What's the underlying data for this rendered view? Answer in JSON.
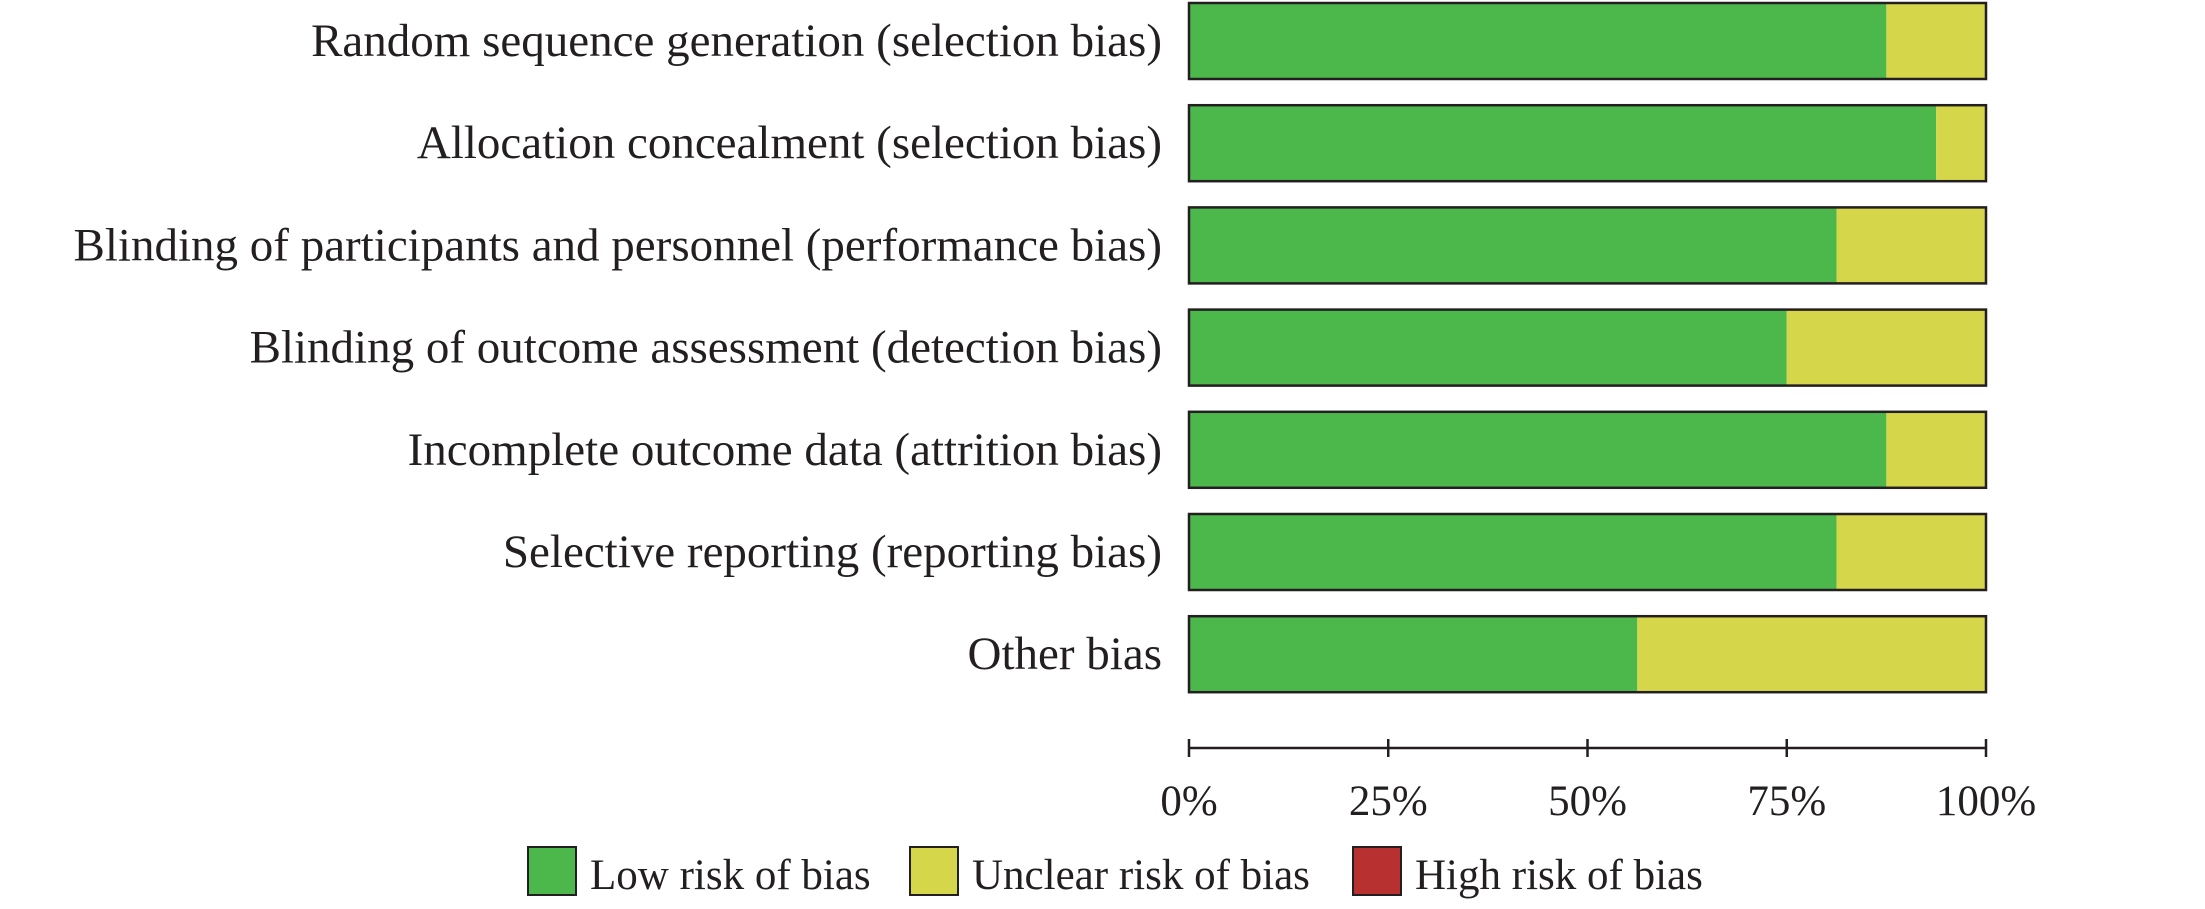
{
  "chart_data": {
    "type": "bar",
    "orientation": "horizontal",
    "stacked": true,
    "categories": [
      "Random sequence generation (selection bias)",
      "Allocation concealment (selection bias)",
      "Blinding of participants and personnel (performance bias)",
      "Blinding of outcome assessment (detection bias)",
      "Incomplete outcome data (attrition bias)",
      "Selective reporting (reporting bias)",
      "Other bias"
    ],
    "series": [
      {
        "name": "Low risk of bias",
        "color": "#4cb84c",
        "values": [
          87.5,
          93.75,
          81.25,
          75,
          87.5,
          81.25,
          56.25
        ]
      },
      {
        "name": "Unclear risk of bias",
        "color": "#d6d64a",
        "values": [
          12.5,
          6.25,
          18.75,
          25,
          12.5,
          18.75,
          43.75
        ]
      },
      {
        "name": "High risk of bias",
        "color": "#b83030",
        "values": [
          0,
          0,
          0,
          0,
          0,
          0,
          0
        ]
      }
    ],
    "x_ticks": [
      "0%",
      "25%",
      "50%",
      "75%",
      "100%"
    ],
    "xlim": [
      0,
      100
    ],
    "legend_position": "bottom",
    "grid": false
  }
}
